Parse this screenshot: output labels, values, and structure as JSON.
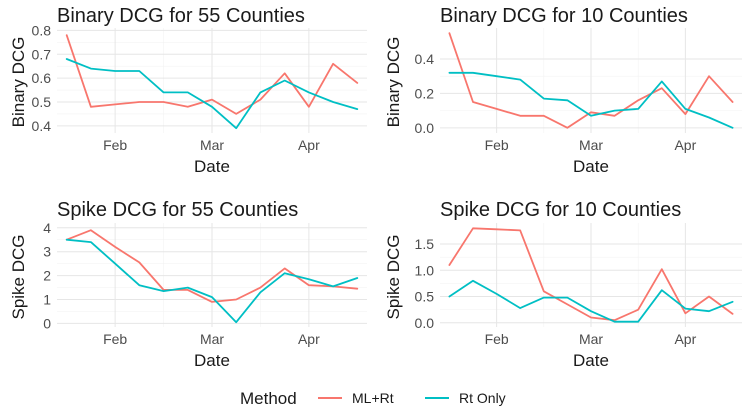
{
  "legend": {
    "title": "Method",
    "items": [
      {
        "label": "ML+Rt",
        "color": "#F8766D"
      },
      {
        "label": "Rt Only",
        "color": "#00BFC4"
      }
    ]
  },
  "chart_data": [
    {
      "type": "line",
      "title": "Binary DCG for 55 Counties",
      "xlabel": "Date",
      "ylabel": "Binary DCG",
      "x_ticks": [
        {
          "label": "Feb",
          "value": 2
        },
        {
          "label": "Mar",
          "value": 6
        },
        {
          "label": "Apr",
          "value": 10
        }
      ],
      "x": [
        0,
        1,
        2,
        3,
        4,
        5,
        6,
        7,
        8,
        9,
        10,
        11,
        12
      ],
      "xlim": [
        -0.4,
        12.4
      ],
      "y_ticks": [
        0.4,
        0.5,
        0.6,
        0.7,
        0.8
      ],
      "ylim": [
        0.37,
        0.81
      ],
      "series": [
        {
          "name": "ML+Rt",
          "values": [
            0.78,
            0.48,
            0.49,
            0.5,
            0.5,
            0.48,
            0.51,
            0.45,
            0.51,
            0.62,
            0.48,
            0.66,
            0.58
          ]
        },
        {
          "name": "Rt Only",
          "values": [
            0.68,
            0.64,
            0.63,
            0.63,
            0.54,
            0.54,
            0.48,
            0.39,
            0.54,
            0.59,
            0.54,
            0.5,
            0.47
          ]
        }
      ]
    },
    {
      "type": "line",
      "title": "Binary DCG for 10 Counties",
      "xlabel": "Date",
      "ylabel": "Binary DCG",
      "x_ticks": [
        {
          "label": "Feb",
          "value": 2
        },
        {
          "label": "Mar",
          "value": 6
        },
        {
          "label": "Apr",
          "value": 10
        }
      ],
      "x": [
        0,
        1,
        2,
        3,
        4,
        5,
        6,
        7,
        8,
        9,
        10,
        11,
        12
      ],
      "xlim": [
        -0.4,
        12.4
      ],
      "y_ticks": [
        0.0,
        0.2,
        0.4
      ],
      "ylim": [
        -0.03,
        0.58
      ],
      "series": [
        {
          "name": "ML+Rt",
          "values": [
            0.55,
            0.15,
            0.11,
            0.07,
            0.07,
            0.0,
            0.09,
            0.07,
            0.16,
            0.23,
            0.08,
            0.3,
            0.15
          ]
        },
        {
          "name": "Rt Only",
          "values": [
            0.32,
            0.32,
            0.3,
            0.28,
            0.17,
            0.16,
            0.07,
            0.1,
            0.11,
            0.27,
            0.11,
            0.06,
            0.0
          ]
        }
      ]
    },
    {
      "type": "line",
      "title": "Spike DCG for 55 Counties",
      "xlabel": "Date",
      "ylabel": "Spike DCG",
      "x_ticks": [
        {
          "label": "Feb",
          "value": 2
        },
        {
          "label": "Mar",
          "value": 6
        },
        {
          "label": "Apr",
          "value": 10
        }
      ],
      "x": [
        0,
        1,
        2,
        3,
        4,
        5,
        6,
        7,
        8,
        9,
        10,
        11,
        12
      ],
      "xlim": [
        -0.4,
        12.4
      ],
      "y_ticks": [
        0,
        1,
        2,
        3,
        4
      ],
      "ylim": [
        -0.15,
        4.2
      ],
      "series": [
        {
          "name": "ML+Rt",
          "values": [
            3.5,
            3.9,
            3.2,
            2.55,
            1.4,
            1.4,
            0.9,
            1.0,
            1.5,
            2.3,
            1.6,
            1.55,
            1.45
          ]
        },
        {
          "name": "Rt Only",
          "values": [
            3.5,
            3.4,
            2.5,
            1.6,
            1.35,
            1.5,
            1.1,
            0.05,
            1.3,
            2.1,
            1.85,
            1.55,
            1.9
          ]
        }
      ]
    },
    {
      "type": "line",
      "title": "Spike DCG for 10 Counties",
      "xlabel": "Date",
      "ylabel": "Spike DCG",
      "x_ticks": [
        {
          "label": "Feb",
          "value": 2
        },
        {
          "label": "Mar",
          "value": 6
        },
        {
          "label": "Apr",
          "value": 10
        }
      ],
      "x": [
        0,
        1,
        2,
        3,
        4,
        5,
        6,
        7,
        8,
        9,
        10,
        11,
        12
      ],
      "xlim": [
        -0.4,
        12.4
      ],
      "y_ticks": [
        0.0,
        0.5,
        1.0,
        1.5
      ],
      "ylim": [
        -0.08,
        1.9
      ],
      "series": [
        {
          "name": "ML+Rt",
          "values": [
            1.1,
            1.8,
            1.78,
            1.76,
            0.6,
            0.35,
            0.1,
            0.05,
            0.25,
            1.02,
            0.18,
            0.5,
            0.17
          ]
        },
        {
          "name": "Rt Only",
          "values": [
            0.5,
            0.8,
            0.55,
            0.28,
            0.48,
            0.48,
            0.22,
            0.02,
            0.02,
            0.62,
            0.27,
            0.22,
            0.4
          ]
        }
      ]
    }
  ]
}
